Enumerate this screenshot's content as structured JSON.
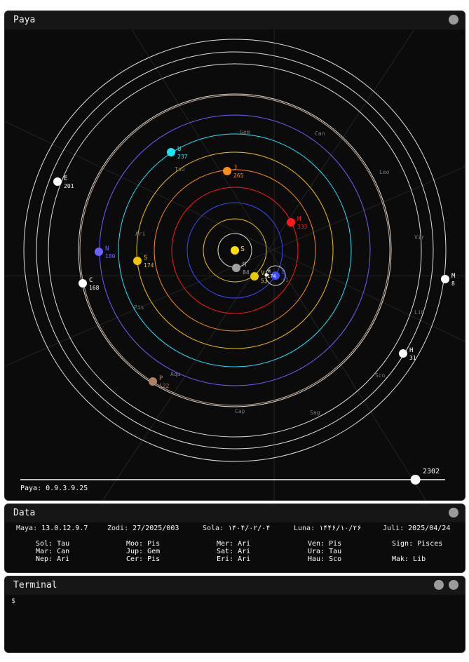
{
  "paya": {
    "title": "Paya",
    "version_text": "Paya: 0.9.3.9.25",
    "slider": {
      "value_label": "2302",
      "fraction": 0.93
    },
    "colors": {
      "background": "#0b0b0b",
      "orbit_pluto": "#c8a890"
    },
    "zodiac_labels": [
      "Gem",
      "Can",
      "Leo",
      "Vir",
      "Lib",
      "Sco",
      "Sag",
      "Cap",
      "Aqu",
      "Pis",
      "Ari",
      "Tau"
    ],
    "sun": {
      "letter": "S",
      "color": "#ffe000"
    },
    "bodies": [
      {
        "letter": "M",
        "degree": "84",
        "color": "#a0a0a0",
        "icon": "mercury-planet"
      },
      {
        "letter": "V",
        "degree": "53",
        "color": "#e8c800",
        "icon": "venus-planet"
      },
      {
        "letter": "E",
        "degree": "31",
        "color": "#3a4cff",
        "icon": "earth-planet"
      },
      {
        "letter": "M",
        "degree": "174",
        "color": "#ffffff",
        "icon": "moon"
      },
      {
        "letter": "M",
        "degree": "333",
        "color": "#ff1a1a",
        "icon": "mars-planet"
      },
      {
        "letter": "J",
        "degree": "265",
        "color": "#ff8c1a",
        "icon": "jupiter-planet"
      },
      {
        "letter": "S",
        "degree": "174",
        "color": "#f2c500",
        "icon": "saturn-planet"
      },
      {
        "letter": "U",
        "degree": "237",
        "color": "#18e8ff",
        "icon": "uranus-planet"
      },
      {
        "letter": "N",
        "degree": "180",
        "color": "#6b63ff",
        "icon": "neptune-planet"
      },
      {
        "letter": "P",
        "degree": "122",
        "color": "#b08064",
        "icon": "pluto-planet"
      },
      {
        "letter": "C",
        "degree": "168",
        "color": "#ffffff",
        "icon": "ceres-body"
      },
      {
        "letter": "E",
        "degree": "201",
        "color": "#ffffff",
        "icon": "eris-body"
      },
      {
        "letter": "M",
        "degree": "8",
        "color": "#ffffff",
        "icon": "makemake-body"
      },
      {
        "letter": "H",
        "degree": "31",
        "color": "#ffffff",
        "icon": "haumea-body"
      }
    ]
  },
  "data_panel": {
    "title": "Data",
    "dates": [
      {
        "label": "Maya:",
        "value": "13.0.12.9.7"
      },
      {
        "label": "Zodi:",
        "value": "27/2025/003"
      },
      {
        "label": "Sola:",
        "value": "۱۴۰۴/۰۲/۰۴"
      },
      {
        "label": "Luna:",
        "value": "۱۴۴۶/۱۰/۲۶"
      },
      {
        "label": "Juli:",
        "value": "2025/04/24"
      }
    ],
    "positions": [
      [
        {
          "k": "Sol:",
          "v": "Tau"
        },
        {
          "k": "Mar:",
          "v": "Can"
        },
        {
          "k": "Nep:",
          "v": "Ari"
        }
      ],
      [
        {
          "k": "Moo:",
          "v": "Pis"
        },
        {
          "k": "Jup:",
          "v": "Gem"
        },
        {
          "k": "Cer:",
          "v": "Pis"
        }
      ],
      [
        {
          "k": "Mer:",
          "v": "Ari"
        },
        {
          "k": "Sat:",
          "v": "Ari"
        },
        {
          "k": "Eri:",
          "v": "Ari"
        }
      ],
      [
        {
          "k": "Ven:",
          "v": "Pis"
        },
        {
          "k": "Ura:",
          "v": "Tau"
        },
        {
          "k": "Hau:",
          "v": "Sco"
        }
      ],
      [
        {
          "k": "Sign:",
          "v": "Pisces"
        },
        {
          "k": "",
          "v": ""
        },
        {
          "k": "Mak:",
          "v": "Lib"
        }
      ]
    ]
  },
  "terminal": {
    "title": "Terminal",
    "prompt": "$"
  }
}
